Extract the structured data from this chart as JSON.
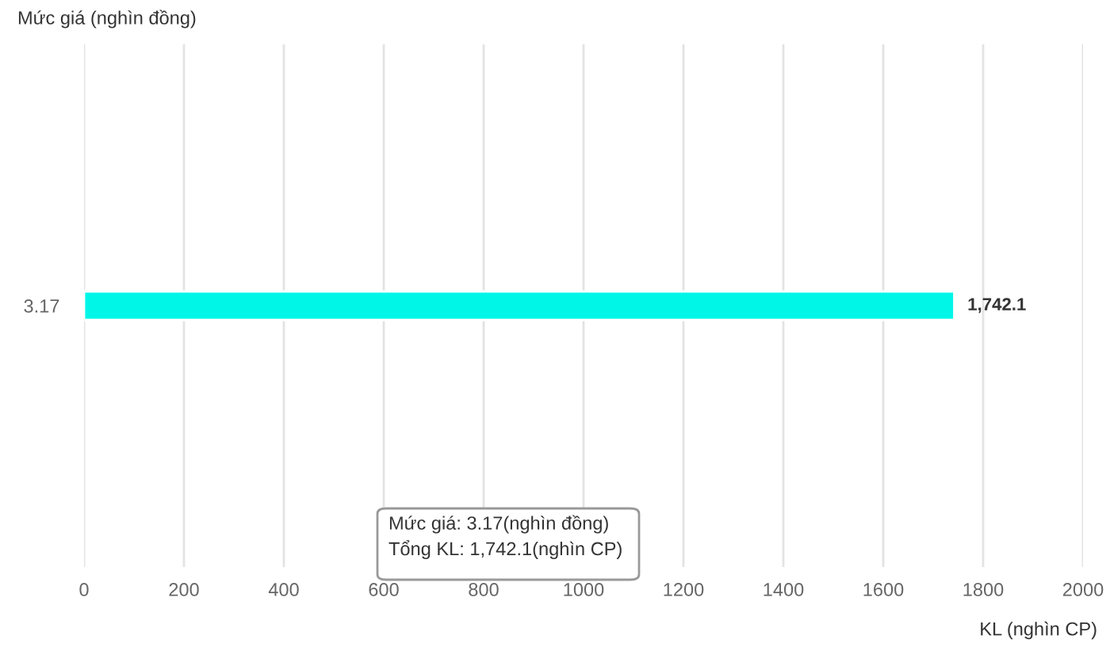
{
  "chart_data": {
    "type": "bar",
    "orientation": "horizontal",
    "ylabel": "Mức giá (nghìn đồng)",
    "xlabel": "KL (nghìn CP)",
    "categories": [
      "3.17"
    ],
    "values": [
      1742.1
    ],
    "color": "#00f7e8",
    "value_labels": [
      "1,742.1"
    ],
    "xlim": [
      0,
      2000
    ],
    "xticks": [
      0,
      200,
      400,
      600,
      800,
      1000,
      1200,
      1400,
      1600,
      1800,
      2000
    ],
    "grid": "x",
    "annotations": [
      "Mức giá: 3.17(nghìn đồng)",
      "Tổng KL: 1,742.1(nghìn CP)"
    ]
  }
}
